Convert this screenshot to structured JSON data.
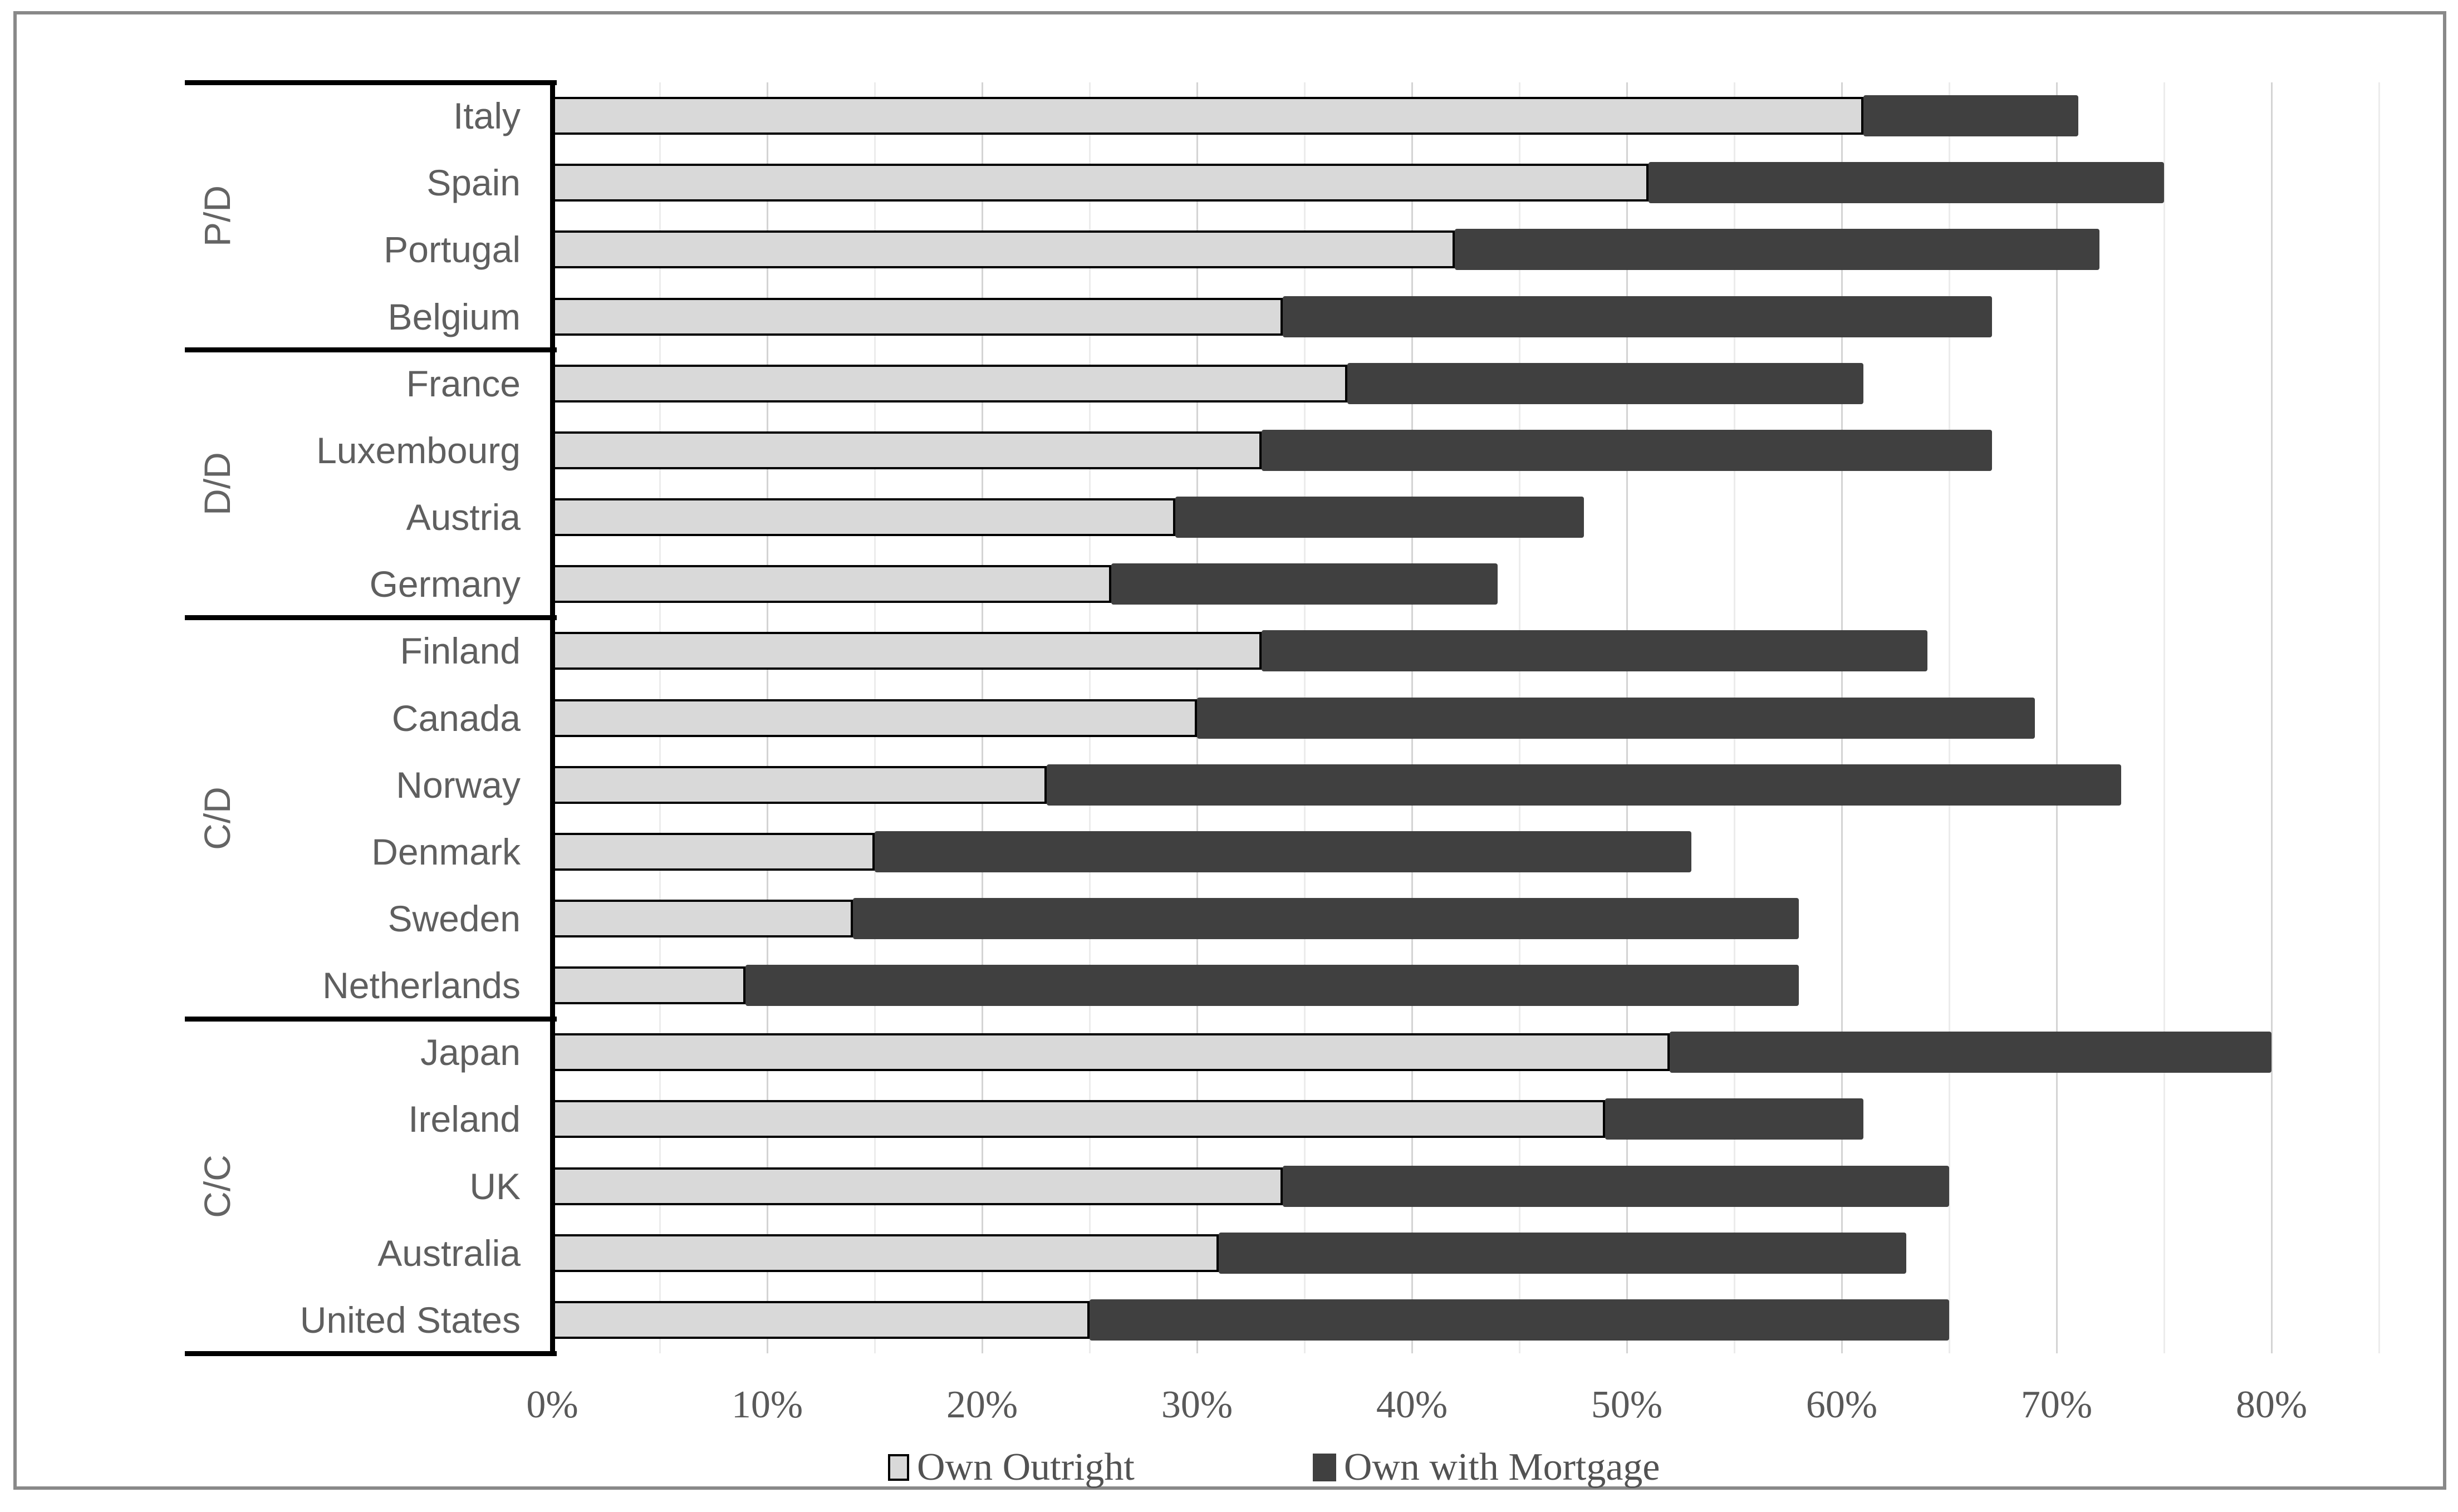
{
  "chart_data": {
    "type": "bar",
    "orientation": "horizontal",
    "stacked": true,
    "title": "",
    "xlabel": "",
    "ylabel": "",
    "grid": "vertical",
    "legend_position": "bottom",
    "x_axis": {
      "min": 0,
      "max": 85,
      "tick_step": 10,
      "gridline_step": 5,
      "gridline_max": 85,
      "tick_labels": [
        "0%",
        "10%",
        "20%",
        "30%",
        "40%",
        "50%",
        "60%",
        "70%",
        "80%"
      ]
    },
    "series": [
      {
        "name": "Own Outright",
        "color": "#d9d9d9",
        "border_color": "#000000"
      },
      {
        "name": "Own with Mortgage",
        "color": "#404040"
      }
    ],
    "groups": [
      {
        "label": "P/D",
        "rows": [
          {
            "country": "Italy",
            "own_outright": 61,
            "own_with_mortgage": 10,
            "total": 71
          },
          {
            "country": "Spain",
            "own_outright": 51,
            "own_with_mortgage": 24,
            "total": 75
          },
          {
            "country": "Portugal",
            "own_outright": 42,
            "own_with_mortgage": 30,
            "total": 72
          },
          {
            "country": "Belgium",
            "own_outright": 34,
            "own_with_mortgage": 33,
            "total": 67
          }
        ]
      },
      {
        "label": "D/D",
        "rows": [
          {
            "country": "France",
            "own_outright": 37,
            "own_with_mortgage": 24,
            "total": 61
          },
          {
            "country": "Luxembourg",
            "own_outright": 33,
            "own_with_mortgage": 34,
            "total": 67
          },
          {
            "country": "Austria",
            "own_outright": 29,
            "own_with_mortgage": 19,
            "total": 48
          },
          {
            "country": "Germany",
            "own_outright": 26,
            "own_with_mortgage": 18,
            "total": 44
          }
        ]
      },
      {
        "label": "C/D",
        "rows": [
          {
            "country": "Finland",
            "own_outright": 33,
            "own_with_mortgage": 31,
            "total": 64
          },
          {
            "country": "Canada",
            "own_outright": 30,
            "own_with_mortgage": 39,
            "total": 69
          },
          {
            "country": "Norway",
            "own_outright": 23,
            "own_with_mortgage": 50,
            "total": 73
          },
          {
            "country": "Denmark",
            "own_outright": 15,
            "own_with_mortgage": 38,
            "total": 53
          },
          {
            "country": "Sweden",
            "own_outright": 14,
            "own_with_mortgage": 44,
            "total": 58
          },
          {
            "country": "Netherlands",
            "own_outright": 9,
            "own_with_mortgage": 49,
            "total": 58
          }
        ]
      },
      {
        "label": "C/C",
        "rows": [
          {
            "country": "Japan",
            "own_outright": 52,
            "own_with_mortgage": 28,
            "total": 80
          },
          {
            "country": "Ireland",
            "own_outright": 49,
            "own_with_mortgage": 12,
            "total": 61
          },
          {
            "country": "UK",
            "own_outright": 34,
            "own_with_mortgage": 31,
            "total": 65
          },
          {
            "country": "Australia",
            "own_outright": 31,
            "own_with_mortgage": 32,
            "total": 63
          },
          {
            "country": "United States",
            "own_outright": 25,
            "own_with_mortgage": 40,
            "total": 65
          }
        ]
      }
    ]
  },
  "legend": {
    "own_outright_label": "Own Outright",
    "own_with_mortgage_label": "Own with Mortgage"
  },
  "colors": {
    "own_outright_fill": "#d9d9d9",
    "own_outright_border": "#000000",
    "own_with_mortgage_fill": "#404040",
    "axis_line": "#000000",
    "major_gridline": "#d4d4d4",
    "minor_gridline": "#ececec",
    "frame_border": "#898989",
    "label_text": "#5f5f5f",
    "tick_text": "#595959"
  }
}
